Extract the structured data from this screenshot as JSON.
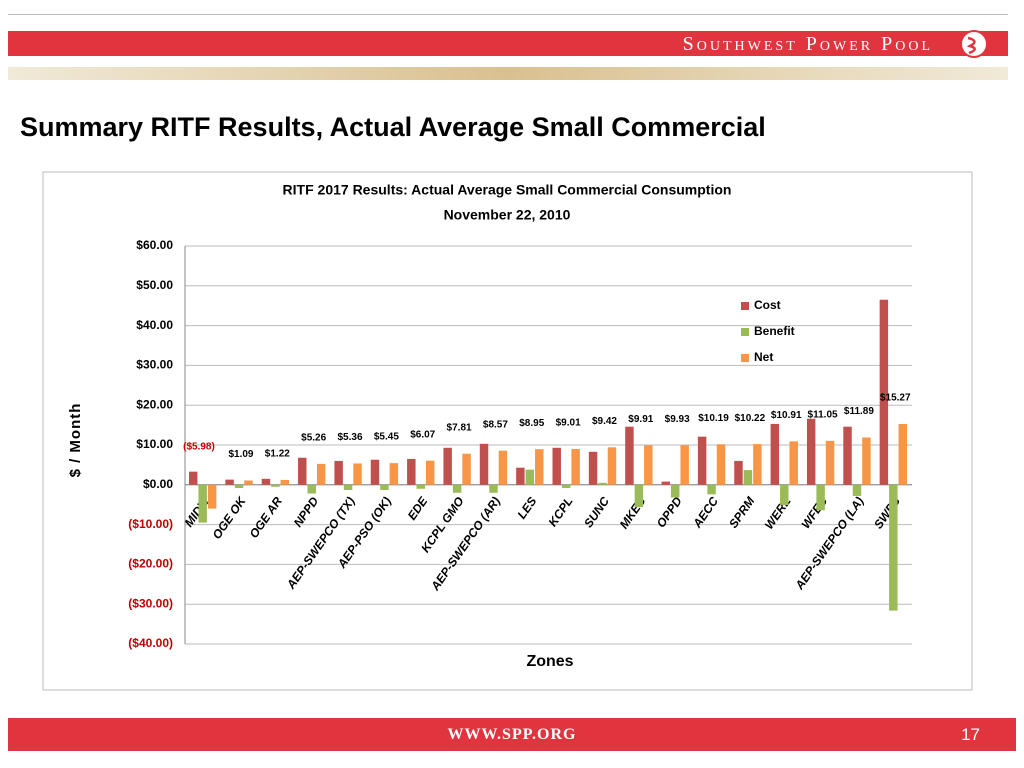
{
  "header": {
    "brand": "Southwest Power Pool"
  },
  "slide_title": "Summary RITF Results, Actual Average Small Commercial",
  "footer": {
    "url": "WWW.SPP.ORG",
    "page": "17"
  },
  "chart_data": {
    "type": "bar",
    "title": "RITF 2017 Results: Actual Average Small Commercial Consumption",
    "subtitle": "November 22, 2010",
    "x_label": "Zones",
    "y_label": "$ / Month",
    "categories": [
      "MIDW",
      "OGE OK",
      "OGE AR",
      "NPPD",
      "AEP-SWEPCO (TX)",
      "AEP-PSO (OK)",
      "EDE",
      "KCPL GMO",
      "AEP-SWEPCO (AR)",
      "LES",
      "KCPL",
      "SUNC",
      "MKEC",
      "OPPD",
      "AECC",
      "SPRM",
      "WERE",
      "WFEC",
      "AEP-SWEPCO (LA)",
      "SWPS"
    ],
    "series": [
      {
        "name": "Cost",
        "color": "#c0504d",
        "values": [
          3.3,
          1.3,
          1.5,
          6.8,
          6.0,
          6.3,
          6.5,
          9.3,
          10.3,
          4.3,
          9.3,
          8.3,
          14.6,
          0.8,
          12.1,
          6.0,
          15.3,
          16.6,
          14.6,
          46.5
        ]
      },
      {
        "name": "Benefit",
        "color": "#9bbb59",
        "values": [
          -9.5,
          -0.8,
          -0.5,
          -2.2,
          -1.3,
          -1.3,
          -1.0,
          -2.0,
          -2.0,
          3.8,
          -0.8,
          0.5,
          -5.6,
          -3.2,
          -2.4,
          3.7,
          -5.1,
          -6.4,
          -2.8,
          -31.6
        ]
      },
      {
        "name": "Net",
        "color": "#f79646",
        "values": [
          -5.98,
          1.09,
          1.22,
          5.26,
          5.36,
          5.45,
          6.07,
          7.81,
          8.57,
          8.95,
          9.01,
          9.42,
          9.91,
          9.93,
          10.19,
          10.22,
          10.91,
          11.05,
          11.89,
          15.27
        ],
        "value_labels": [
          "($5.98)",
          "$1.09",
          "$1.22",
          "$5.26",
          "$5.36",
          "$5.45",
          "$6.07",
          "$7.81",
          "$8.57",
          "$8.95",
          "$9.01",
          "$9.42",
          "$9.91",
          "$9.93",
          "$10.19",
          "$10.22",
          "$10.91",
          "$11.05",
          "$11.89",
          "$15.27"
        ]
      }
    ],
    "ylim": [
      -40,
      60
    ],
    "yticks": [
      {
        "value": -40,
        "label": "($40.00)"
      },
      {
        "value": -30,
        "label": "($30.00)"
      },
      {
        "value": -20,
        "label": "($20.00)"
      },
      {
        "value": -10,
        "label": "($10.00)"
      },
      {
        "value": 0,
        "label": "$0.00"
      },
      {
        "value": 10,
        "label": "$10.00"
      },
      {
        "value": 20,
        "label": "$20.00"
      },
      {
        "value": 30,
        "label": "$30.00"
      },
      {
        "value": 40,
        "label": "$40.00"
      },
      {
        "value": 50,
        "label": "$50.00"
      },
      {
        "value": 60,
        "label": "$60.00"
      }
    ],
    "grid": true,
    "legend": "upper right"
  }
}
